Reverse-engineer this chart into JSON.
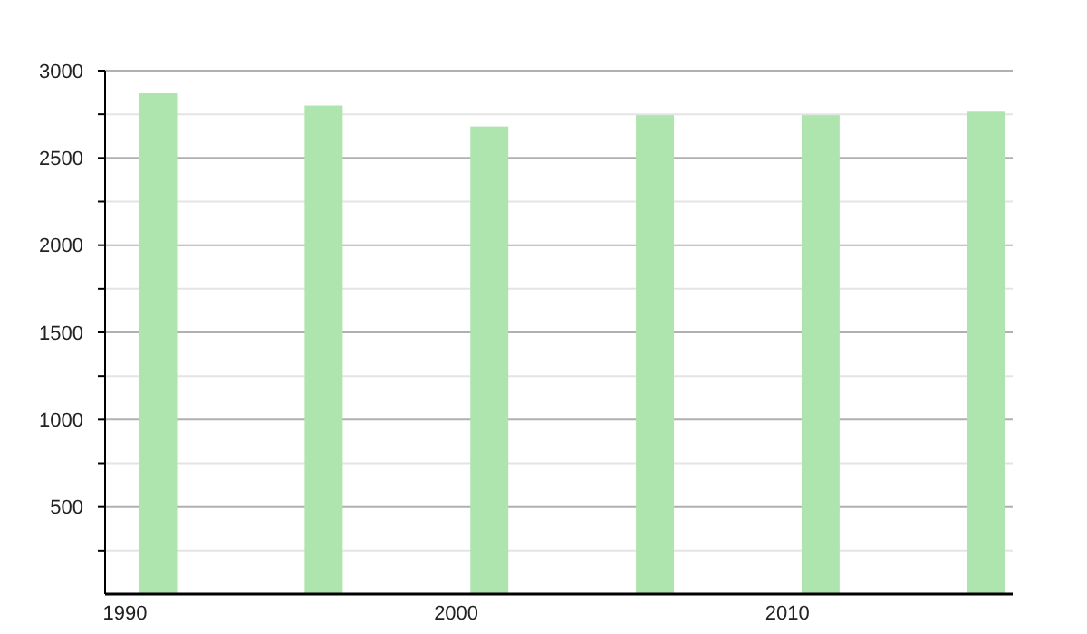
{
  "chart_data": {
    "type": "bar",
    "x": [
      1991,
      1996,
      2001,
      2006,
      2011,
      2016
    ],
    "values": [
      2870,
      2800,
      2680,
      2745,
      2745,
      2765
    ],
    "color": "#aee5ae",
    "xlim": [
      1989.4,
      2016.8
    ],
    "xticks": [
      1990,
      2000,
      2010
    ],
    "ylim": [
      0,
      3000
    ],
    "yticks": [
      {
        "value": 250,
        "label": null
      },
      500,
      {
        "value": 750,
        "label": null
      },
      1000,
      {
        "value": 1250,
        "label": null
      },
      1500,
      {
        "value": 1750,
        "label": null
      },
      2000,
      {
        "value": 2250,
        "label": null
      },
      2500,
      {
        "value": 2750,
        "label": null
      },
      3000
    ],
    "grid": "y"
  }
}
